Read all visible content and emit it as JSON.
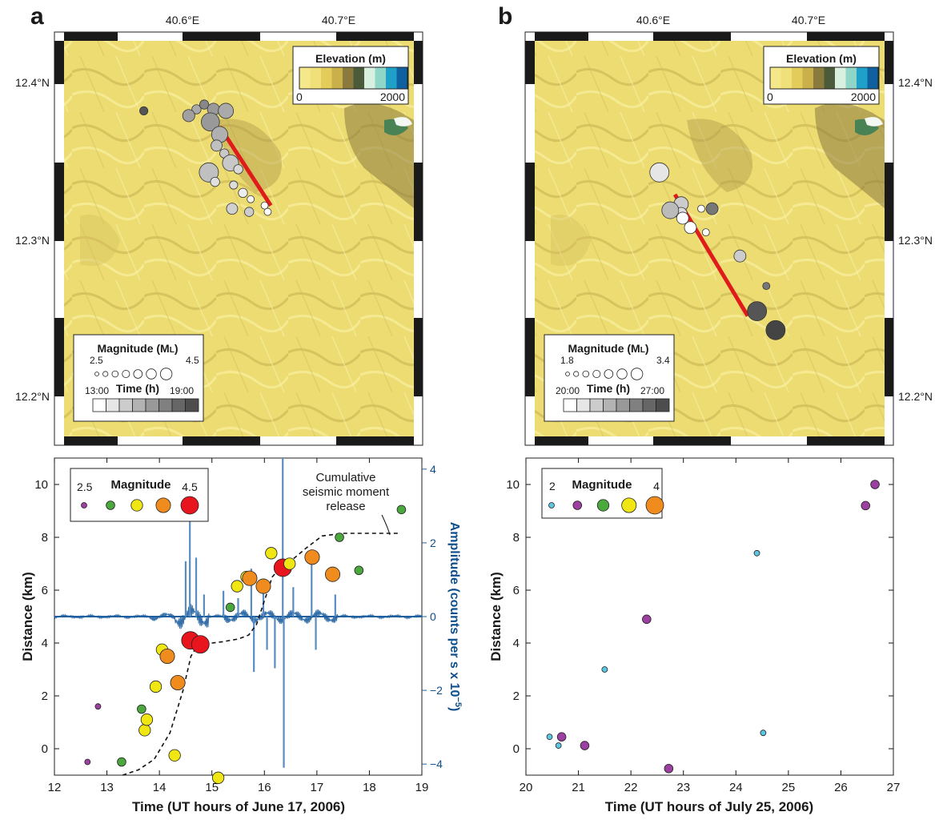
{
  "panels": [
    {
      "letter": "a",
      "map": {
        "lon_labels": [
          "40.6°E",
          "40.7°E"
        ],
        "lat_labels": [
          "12.4°N",
          "12.3°N",
          "12.2°N"
        ],
        "elevation_legend": {
          "title": "Elevation (m)",
          "min_label": "0",
          "max_label": "2000",
          "colors": [
            "#f4e88a",
            "#efe07a",
            "#e3cc5a",
            "#c9b04a",
            "#8a7a3e",
            "#4b5a38",
            "#d8f0e0",
            "#8fd6c8",
            "#1ea0c8",
            "#1060a0"
          ]
        },
        "magnitude_legend": {
          "title": "Magnitude (M",
          "title_sub": "L",
          "title_end": ")",
          "min_label": "2.5",
          "max_label": "4.5"
        },
        "time_legend": {
          "title": "Time (h)",
          "min_label": "13:00",
          "max_label": "19:00",
          "shades": [
            "#ffffff",
            "#e6e6e6",
            "#cccccc",
            "#b3b3b3",
            "#999999",
            "#808080",
            "#666666",
            "#4d4d4d"
          ]
        },
        "fault_line": {
          "lon": [
            40.624,
            40.657
          ],
          "lat": [
            12.372,
            12.322
          ]
        },
        "events": [
          {
            "lon": 40.575,
            "lat": 12.382,
            "mag": 2.6,
            "shade": "#555555"
          },
          {
            "lon": 40.609,
            "lat": 12.383,
            "mag": 2.7,
            "shade": "#aaaaaa"
          },
          {
            "lon": 40.614,
            "lat": 12.386,
            "mag": 2.7,
            "shade": "#888888"
          },
          {
            "lon": 40.62,
            "lat": 12.383,
            "mag": 3.0,
            "shade": "#999999"
          },
          {
            "lon": 40.628,
            "lat": 12.382,
            "mag": 3.3,
            "shade": "#aaaaaa"
          },
          {
            "lon": 40.604,
            "lat": 12.379,
            "mag": 3.0,
            "shade": "#a0a0a0"
          },
          {
            "lon": 40.618,
            "lat": 12.375,
            "mag": 3.6,
            "shade": "#999999"
          },
          {
            "lon": 40.624,
            "lat": 12.367,
            "mag": 3.4,
            "shade": "#b0b0b0"
          },
          {
            "lon": 40.622,
            "lat": 12.36,
            "mag": 2.9,
            "shade": "#c0c0c0"
          },
          {
            "lon": 40.627,
            "lat": 12.355,
            "mag": 2.7,
            "shade": "#c8c8c8"
          },
          {
            "lon": 40.631,
            "lat": 12.349,
            "mag": 3.4,
            "shade": "#c8c8c8"
          },
          {
            "lon": 40.617,
            "lat": 12.343,
            "mag": 3.7,
            "shade": "#c0c0c0"
          },
          {
            "lon": 40.621,
            "lat": 12.337,
            "mag": 2.7,
            "shade": "#e0e0e0"
          },
          {
            "lon": 40.636,
            "lat": 12.345,
            "mag": 2.7,
            "shade": "#d8d8d8"
          },
          {
            "lon": 40.633,
            "lat": 12.335,
            "mag": 2.6,
            "shade": "#dddddd"
          },
          {
            "lon": 40.639,
            "lat": 12.33,
            "mag": 2.7,
            "shade": "#eeeeee"
          },
          {
            "lon": 40.644,
            "lat": 12.326,
            "mag": 2.5,
            "shade": "#f2f2f2"
          },
          {
            "lon": 40.632,
            "lat": 12.32,
            "mag": 2.9,
            "shade": "#d0d0d0"
          },
          {
            "lon": 40.653,
            "lat": 12.322,
            "mag": 2.5,
            "shade": "#ffffff"
          },
          {
            "lon": 40.655,
            "lat": 12.318,
            "mag": 2.5,
            "shade": "#ffffff"
          },
          {
            "lon": 40.643,
            "lat": 12.318,
            "mag": 2.7,
            "shade": "#cccccc"
          }
        ]
      }
    },
    {
      "letter": "b",
      "map": {
        "lon_labels": [
          "40.6°E",
          "40.7°E"
        ],
        "lat_labels": [
          "12.4°N",
          "12.3°N",
          "12.2°N"
        ],
        "elevation_legend": {
          "title": "Elevation (m)",
          "min_label": "0",
          "max_label": "2000",
          "colors": [
            "#f4e88a",
            "#efe07a",
            "#e3cc5a",
            "#c9b04a",
            "#8a7a3e",
            "#4b5a38",
            "#d8f0e0",
            "#8fd6c8",
            "#1ea0c8",
            "#1060a0"
          ]
        },
        "magnitude_legend": {
          "title": "Magnitude (M",
          "title_sub": "L",
          "title_end": ")",
          "min_label": "1.8",
          "max_label": "3.4"
        },
        "time_legend": {
          "title": "Time (h)",
          "min_label": "20:00",
          "max_label": "27:00",
          "shades": [
            "#ffffff",
            "#e6e6e6",
            "#cccccc",
            "#b3b3b3",
            "#999999",
            "#808080",
            "#666666",
            "#4d4d4d"
          ]
        },
        "fault_line": {
          "lon": [
            40.614,
            40.661
          ],
          "lat": [
            12.329,
            12.252
          ]
        },
        "events": [
          {
            "lon": 40.604,
            "lat": 12.343,
            "mag": 2.6,
            "shade": "#e6e6e6"
          },
          {
            "lon": 40.618,
            "lat": 12.323,
            "mag": 2.4,
            "shade": "#cccccc"
          },
          {
            "lon": 40.618,
            "lat": 12.317,
            "mag": 2.3,
            "shade": "#dddddd"
          },
          {
            "lon": 40.611,
            "lat": 12.319,
            "mag": 2.5,
            "shade": "#bbbbbb"
          },
          {
            "lon": 40.619,
            "lat": 12.314,
            "mag": 2.3,
            "shade": "#ffffff"
          },
          {
            "lon": 40.631,
            "lat": 12.32,
            "mag": 2.1,
            "shade": "#ffffff"
          },
          {
            "lon": 40.638,
            "lat": 12.32,
            "mag": 2.3,
            "shade": "#777777"
          },
          {
            "lon": 40.624,
            "lat": 12.308,
            "mag": 2.3,
            "shade": "#ffffff"
          },
          {
            "lon": 40.634,
            "lat": 12.305,
            "mag": 2.1,
            "shade": "#ffffff"
          },
          {
            "lon": 40.656,
            "lat": 12.29,
            "mag": 2.3,
            "shade": "#cccccc"
          },
          {
            "lon": 40.673,
            "lat": 12.271,
            "mag": 2.1,
            "shade": "#777777"
          },
          {
            "lon": 40.667,
            "lat": 12.255,
            "mag": 2.6,
            "shade": "#555555"
          },
          {
            "lon": 40.679,
            "lat": 12.243,
            "mag": 2.6,
            "shade": "#444444"
          }
        ]
      }
    }
  ],
  "chart_data": [
    {
      "type": "scatter",
      "panel": "a",
      "xlabel": "Time (UT hours of June 17, 2006)",
      "ylabel": "Distance (km)",
      "y2label": "Amplitude (counts per s x 10",
      "y2label_sup": "−5",
      "y2label_end": ")",
      "xlim": [
        12,
        19
      ],
      "ylim": [
        -1,
        11
      ],
      "y2lim": [
        -4.3,
        4.3
      ],
      "xticks": [
        "12",
        "13",
        "14",
        "15",
        "16",
        "17",
        "18",
        "19"
      ],
      "yticks": [
        "0",
        "2",
        "4",
        "6",
        "8",
        "10"
      ],
      "y2ticks": [
        "−4",
        "−2",
        "0",
        "2",
        "4"
      ],
      "legend": {
        "title": "Magnitude",
        "min_label": "2.5",
        "max_label": "4.5",
        "position": "top-left"
      },
      "annotation": [
        "Cumulative",
        "seismic moment",
        "release"
      ],
      "magnitude_classes": [
        {
          "mag": 2.5,
          "color": "#9b3fa0"
        },
        {
          "mag": 3.0,
          "color": "#4aa83c"
        },
        {
          "mag": 3.5,
          "color": "#f0e614"
        },
        {
          "mag": 4.0,
          "color": "#f08c1e"
        },
        {
          "mag": 4.5,
          "color": "#e8141e"
        }
      ],
      "points": [
        {
          "x": 12.63,
          "y": -0.5,
          "cls": 0
        },
        {
          "x": 12.83,
          "y": 1.6,
          "cls": 0
        },
        {
          "x": 13.28,
          "y": -0.5,
          "cls": 1
        },
        {
          "x": 13.66,
          "y": 1.5,
          "cls": 1
        },
        {
          "x": 13.72,
          "y": 0.7,
          "cls": 2
        },
        {
          "x": 13.76,
          "y": 1.1,
          "cls": 2
        },
        {
          "x": 13.93,
          "y": 2.35,
          "cls": 2
        },
        {
          "x": 14.05,
          "y": 3.75,
          "cls": 2
        },
        {
          "x": 14.29,
          "y": -0.25,
          "cls": 2
        },
        {
          "x": 14.15,
          "y": 3.5,
          "cls": 3
        },
        {
          "x": 14.35,
          "y": 2.5,
          "cls": 3
        },
        {
          "x": 14.59,
          "y": 4.1,
          "cls": 4
        },
        {
          "x": 14.78,
          "y": 3.95,
          "cls": 4
        },
        {
          "x": 15.12,
          "y": -1.1,
          "cls": 2
        },
        {
          "x": 15.35,
          "y": 5.35,
          "cls": 1
        },
        {
          "x": 15.48,
          "y": 6.15,
          "cls": 2
        },
        {
          "x": 15.66,
          "y": 6.5,
          "cls": 2
        },
        {
          "x": 15.72,
          "y": 6.45,
          "cls": 3
        },
        {
          "x": 15.98,
          "y": 6.15,
          "cls": 3
        },
        {
          "x": 16.13,
          "y": 7.4,
          "cls": 2
        },
        {
          "x": 16.35,
          "y": 6.85,
          "cls": 4
        },
        {
          "x": 16.48,
          "y": 7.0,
          "cls": 2
        },
        {
          "x": 16.91,
          "y": 7.25,
          "cls": 3
        },
        {
          "x": 17.3,
          "y": 6.6,
          "cls": 3
        },
        {
          "x": 17.43,
          "y": 8.0,
          "cls": 1
        },
        {
          "x": 17.8,
          "y": 6.75,
          "cls": 1
        },
        {
          "x": 18.61,
          "y": 9.05,
          "cls": 1
        }
      ],
      "moment_curve": {
        "x": [
          13.3,
          13.6,
          13.9,
          14.2,
          14.45,
          14.6,
          14.72,
          14.85,
          15.0,
          15.2,
          15.5,
          15.7,
          15.85,
          16.0,
          16.15,
          16.3,
          16.5,
          16.8,
          17.1,
          17.5,
          18.0,
          18.6
        ],
        "y": [
          -1.0,
          -0.8,
          -0.4,
          0.6,
          2.2,
          3.5,
          3.9,
          3.95,
          4.0,
          4.05,
          4.15,
          4.3,
          4.7,
          5.6,
          6.5,
          6.85,
          7.1,
          7.6,
          8.05,
          8.15,
          8.15,
          8.15
        ]
      },
      "amplitude_spikes": [
        {
          "x": 14.5,
          "amp": 1.5
        },
        {
          "x": 14.58,
          "amp": 3.3
        },
        {
          "x": 14.7,
          "amp": 1.6
        },
        {
          "x": 14.85,
          "amp": 0.6
        },
        {
          "x": 15.22,
          "amp": 0.7
        },
        {
          "x": 15.5,
          "amp": 0.5
        },
        {
          "x": 15.75,
          "amp": 1.3
        },
        {
          "x": 15.8,
          "amp": -1.5
        },
        {
          "x": 15.98,
          "amp": 0.7
        },
        {
          "x": 16.05,
          "amp": -0.9
        },
        {
          "x": 16.2,
          "amp": -1.4
        },
        {
          "x": 16.35,
          "amp": 4.3
        },
        {
          "x": 16.37,
          "amp": -4.1
        },
        {
          "x": 16.55,
          "amp": 0.8
        },
        {
          "x": 16.9,
          "amp": 1.5
        },
        {
          "x": 16.98,
          "amp": -0.9
        },
        {
          "x": 17.35,
          "amp": 0.6
        }
      ]
    },
    {
      "type": "scatter",
      "panel": "b",
      "xlabel": "Time (UT hours of July 25, 2006)",
      "ylabel": "Distance (km)",
      "xlim": [
        20,
        27
      ],
      "ylim": [
        -1,
        11
      ],
      "xticks": [
        "20",
        "21",
        "22",
        "23",
        "24",
        "25",
        "26",
        "27"
      ],
      "yticks": [
        "0",
        "2",
        "4",
        "6",
        "8",
        "10"
      ],
      "legend": {
        "title": "Magnitude",
        "min_label": "2",
        "max_label": "4",
        "position": "top-left"
      },
      "magnitude_classes": [
        {
          "mag": 2.0,
          "color": "#5cc6e0"
        },
        {
          "mag": 2.5,
          "color": "#9b3fa0"
        },
        {
          "mag": 3.0,
          "color": "#4aa83c"
        },
        {
          "mag": 3.5,
          "color": "#f0e614"
        },
        {
          "mag": 4.0,
          "color": "#f08c1e"
        }
      ],
      "points": [
        {
          "x": 20.45,
          "y": 0.45,
          "cls": 0
        },
        {
          "x": 20.62,
          "y": 0.12,
          "cls": 0
        },
        {
          "x": 20.68,
          "y": 0.45,
          "cls": 1
        },
        {
          "x": 21.12,
          "y": 0.12,
          "cls": 1
        },
        {
          "x": 21.5,
          "y": 3.0,
          "cls": 0
        },
        {
          "x": 22.3,
          "y": 4.9,
          "cls": 1
        },
        {
          "x": 22.72,
          "y": -0.75,
          "cls": 1
        },
        {
          "x": 24.4,
          "y": 7.4,
          "cls": 0
        },
        {
          "x": 24.52,
          "y": 0.6,
          "cls": 0
        },
        {
          "x": 26.47,
          "y": 9.2,
          "cls": 1
        },
        {
          "x": 26.65,
          "y": 10.0,
          "cls": 1
        }
      ]
    }
  ]
}
